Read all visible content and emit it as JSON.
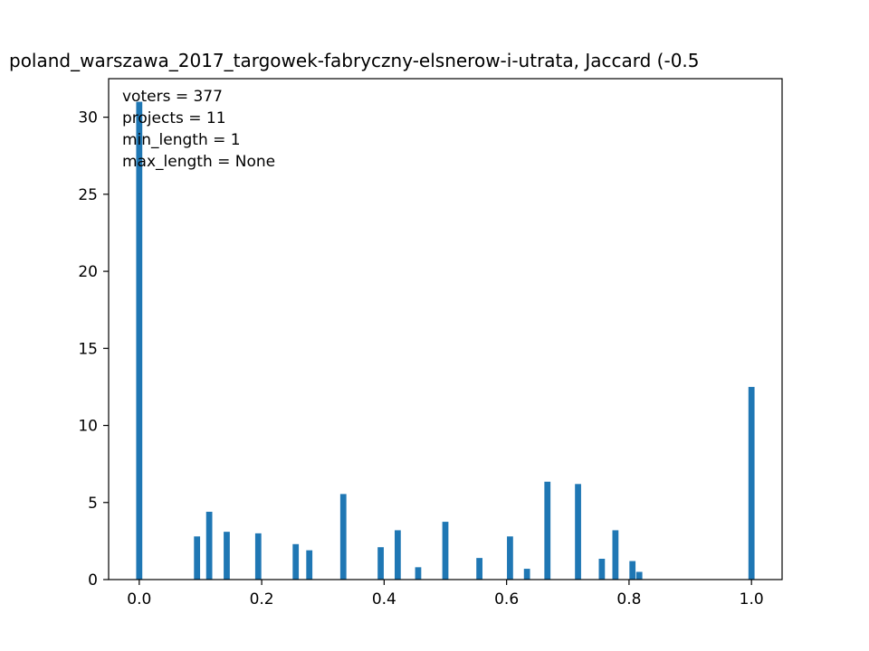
{
  "chart_data": {
    "type": "bar",
    "title": "poland_warszawa_2017_targowek-fabryczny-elsnerow-i-utrata, Jaccard (-0.5",
    "xlabel": "",
    "ylabel": "",
    "xlim": [
      -0.05,
      1.05
    ],
    "ylim": [
      0,
      32.5
    ],
    "xticks": [
      {
        "value": 0.0,
        "label": "0.0"
      },
      {
        "value": 0.2,
        "label": "0.2"
      },
      {
        "value": 0.4,
        "label": "0.4"
      },
      {
        "value": 0.6,
        "label": "0.6"
      },
      {
        "value": 0.8,
        "label": "0.8"
      },
      {
        "value": 1.0,
        "label": "1.0"
      }
    ],
    "yticks": [
      {
        "value": 0,
        "label": "0"
      },
      {
        "value": 5,
        "label": "5"
      },
      {
        "value": 10,
        "label": "10"
      },
      {
        "value": 15,
        "label": "15"
      },
      {
        "value": 20,
        "label": "20"
      },
      {
        "value": 25,
        "label": "25"
      },
      {
        "value": 30,
        "label": "30"
      }
    ],
    "bar_width": 0.01,
    "color": "#1f77b4",
    "bars": [
      {
        "x": 0.0,
        "value": 31.0
      },
      {
        "x": 0.0944,
        "value": 2.8
      },
      {
        "x": 0.1143,
        "value": 4.4
      },
      {
        "x": 0.1429,
        "value": 3.1
      },
      {
        "x": 0.1944,
        "value": 3.0
      },
      {
        "x": 0.2556,
        "value": 2.3
      },
      {
        "x": 0.2778,
        "value": 1.9
      },
      {
        "x": 0.3333,
        "value": 5.55
      },
      {
        "x": 0.3944,
        "value": 2.1
      },
      {
        "x": 0.4222,
        "value": 3.2
      },
      {
        "x": 0.4556,
        "value": 0.8
      },
      {
        "x": 0.5,
        "value": 3.75
      },
      {
        "x": 0.5556,
        "value": 1.4
      },
      {
        "x": 0.6056,
        "value": 2.8
      },
      {
        "x": 0.6333,
        "value": 0.7
      },
      {
        "x": 0.6667,
        "value": 6.35
      },
      {
        "x": 0.7167,
        "value": 6.2
      },
      {
        "x": 0.7556,
        "value": 1.35
      },
      {
        "x": 0.7778,
        "value": 3.2
      },
      {
        "x": 0.8056,
        "value": 1.2
      },
      {
        "x": 0.8167,
        "value": 0.5
      },
      {
        "x": 1.0,
        "value": 12.5
      }
    ],
    "annotations": [
      "voters = 377",
      "projects = 11",
      "min_length = 1",
      "max_length = None"
    ],
    "annotation_position": "top-left",
    "grid": false,
    "legend": "none"
  }
}
